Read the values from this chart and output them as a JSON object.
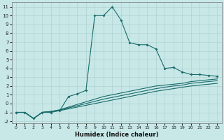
{
  "xlabel": "Humidex (Indice chaleur)",
  "bg_color": "#c8e8e8",
  "line_color": "#1a6b6b",
  "xlim": [
    -0.5,
    23.5
  ],
  "ylim": [
    -2.2,
    11.5
  ],
  "xticks": [
    0,
    1,
    2,
    3,
    4,
    5,
    6,
    7,
    8,
    9,
    10,
    11,
    12,
    13,
    14,
    15,
    16,
    17,
    18,
    19,
    20,
    21,
    22,
    23
  ],
  "yticks": [
    -2,
    -1,
    0,
    1,
    2,
    3,
    4,
    5,
    6,
    7,
    8,
    9,
    10,
    11
  ],
  "series1_x": [
    0,
    1,
    2,
    3,
    4,
    5,
    6,
    7,
    8,
    9,
    10,
    11,
    12,
    13,
    14,
    15,
    16,
    17,
    18,
    19,
    20,
    21,
    22,
    23
  ],
  "series1_y": [
    -1,
    -1,
    -1.7,
    -1,
    -1,
    -0.8,
    0.8,
    1.1,
    1.5,
    10.0,
    10.0,
    11.0,
    9.5,
    6.9,
    6.7,
    6.7,
    6.2,
    4.0,
    4.1,
    3.6,
    3.3,
    3.3,
    3.2,
    3.1
  ],
  "series2_x": [
    0,
    1,
    2,
    3,
    4,
    5,
    6,
    7,
    8,
    9,
    10,
    11,
    12,
    13,
    14,
    15,
    16,
    17,
    18,
    19,
    20,
    21,
    22,
    23
  ],
  "series2_y": [
    -1,
    -1,
    -1.7,
    -1,
    -0.9,
    -0.7,
    -0.4,
    -0.1,
    0.2,
    0.5,
    0.8,
    1.0,
    1.2,
    1.4,
    1.6,
    1.8,
    2.0,
    2.1,
    2.2,
    2.3,
    2.5,
    2.6,
    2.7,
    2.8
  ],
  "series3_x": [
    0,
    1,
    2,
    3,
    4,
    5,
    6,
    7,
    8,
    9,
    10,
    11,
    12,
    13,
    14,
    15,
    16,
    17,
    18,
    19,
    20,
    21,
    22,
    23
  ],
  "series3_y": [
    -1,
    -1,
    -1.7,
    -1,
    -0.9,
    -0.75,
    -0.5,
    -0.25,
    0.0,
    0.25,
    0.5,
    0.7,
    0.9,
    1.1,
    1.3,
    1.5,
    1.7,
    1.85,
    2.0,
    2.1,
    2.3,
    2.4,
    2.5,
    2.6
  ],
  "series4_x": [
    0,
    1,
    2,
    3,
    4,
    5,
    6,
    7,
    8,
    9,
    10,
    11,
    12,
    13,
    14,
    15,
    16,
    17,
    18,
    19,
    20,
    21,
    22,
    23
  ],
  "series4_y": [
    -1,
    -1,
    -1.7,
    -1,
    -0.9,
    -0.8,
    -0.6,
    -0.4,
    -0.2,
    0.0,
    0.2,
    0.4,
    0.6,
    0.8,
    1.0,
    1.2,
    1.4,
    1.55,
    1.7,
    1.85,
    2.0,
    2.1,
    2.2,
    2.3
  ]
}
